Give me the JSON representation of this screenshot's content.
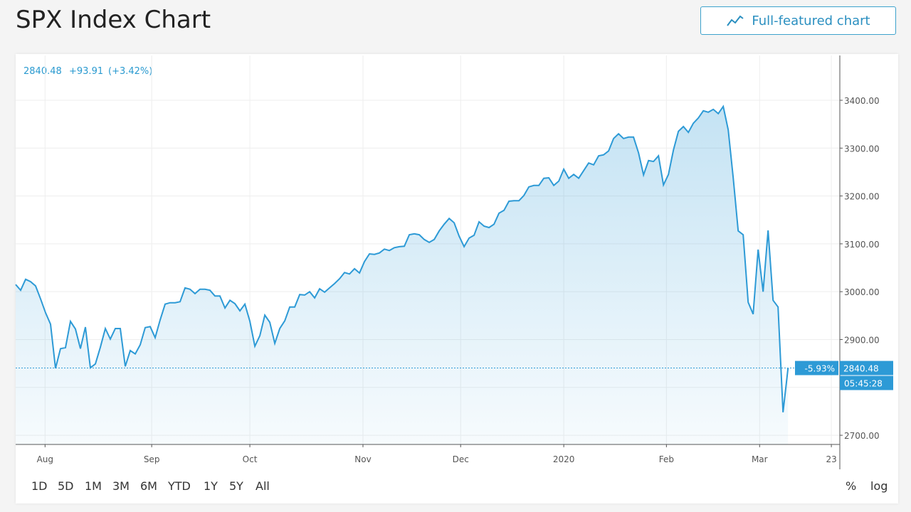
{
  "header": {
    "title": "SPX Index Chart",
    "button": "Full-featured chart"
  },
  "quote": {
    "price": "2840.48",
    "change": "+93.91",
    "percent": "(+3.42%)"
  },
  "chart_data": {
    "type": "area",
    "color": "#2d9ad6",
    "grid": true,
    "values": [
      3015,
      3003,
      3026,
      3021,
      3012,
      2985,
      2956,
      2932,
      2840,
      2881,
      2883,
      2938,
      2922,
      2881,
      2926,
      2841,
      2849,
      2884,
      2923,
      2901,
      2923,
      2923,
      2844,
      2877,
      2870,
      2889,
      2925,
      2927,
      2904,
      2941,
      2974,
      2977,
      2977,
      2979,
      3008,
      3005,
      2996,
      3005,
      3005,
      3003,
      2991,
      2991,
      2966,
      2982,
      2975,
      2960,
      2974,
      2938,
      2886,
      2908,
      2951,
      2936,
      2892,
      2923,
      2939,
      2968,
      2968,
      2994,
      2993,
      3000,
      2987,
      3006,
      2999,
      3008,
      3017,
      3027,
      3040,
      3037,
      3048,
      3039,
      3063,
      3079,
      3078,
      3081,
      3089,
      3086,
      3092,
      3094,
      3095,
      3119,
      3121,
      3119,
      3109,
      3103,
      3109,
      3127,
      3141,
      3153,
      3144,
      3116,
      3094,
      3112,
      3118,
      3146,
      3137,
      3134,
      3141,
      3164,
      3170,
      3189,
      3190,
      3190,
      3201,
      3219,
      3222,
      3222,
      3237,
      3238,
      3222,
      3231,
      3256,
      3237,
      3245,
      3237,
      3253,
      3269,
      3265,
      3284,
      3286,
      3294,
      3320,
      3330,
      3320,
      3323,
      3323,
      3290,
      3244,
      3274,
      3272,
      3284,
      3223,
      3245,
      3296,
      3335,
      3345,
      3333,
      3352,
      3363,
      3378,
      3375,
      3381,
      3372,
      3387,
      3338,
      3238,
      3127,
      3119,
      2978,
      2953,
      3088,
      3000,
      3128,
      2982,
      2968,
      2748,
      2840
    ],
    "xlim": [
      0,
      165.4
    ],
    "xticks": [
      {
        "value": 5.9,
        "label": "Aug"
      },
      {
        "value": 27.3,
        "label": "Sep"
      },
      {
        "value": 47,
        "label": "Oct"
      },
      {
        "value": 69.7,
        "label": "Nov"
      },
      {
        "value": 89.3,
        "label": "Dec"
      },
      {
        "value": 110,
        "label": "2020"
      },
      {
        "value": 130.6,
        "label": "Feb"
      },
      {
        "value": 149.3,
        "label": "Mar"
      },
      {
        "value": 163.7,
        "label": "23"
      }
    ],
    "ylim": [
      2680.8,
      3493.6
    ],
    "yticks": [
      {
        "value": 2700,
        "label": "2700.00"
      },
      {
        "value": 2800,
        "label": ""
      },
      {
        "value": 2900,
        "label": "2900.00"
      },
      {
        "value": 3000,
        "label": "3000.00"
      },
      {
        "value": 3100,
        "label": "3100.00"
      },
      {
        "value": 3200,
        "label": "3200.00"
      },
      {
        "value": 3300,
        "label": "3300.00"
      },
      {
        "value": 3400,
        "label": "3400.00"
      }
    ],
    "last_value": 2840.48,
    "last_change": "-5.93%",
    "countdown": "05:45:28"
  },
  "ranges": [
    "1D",
    "5D",
    "1M",
    "3M",
    "6M",
    "YTD",
    "1Y",
    "5Y",
    "All"
  ],
  "scale_options": [
    "%",
    "log"
  ]
}
